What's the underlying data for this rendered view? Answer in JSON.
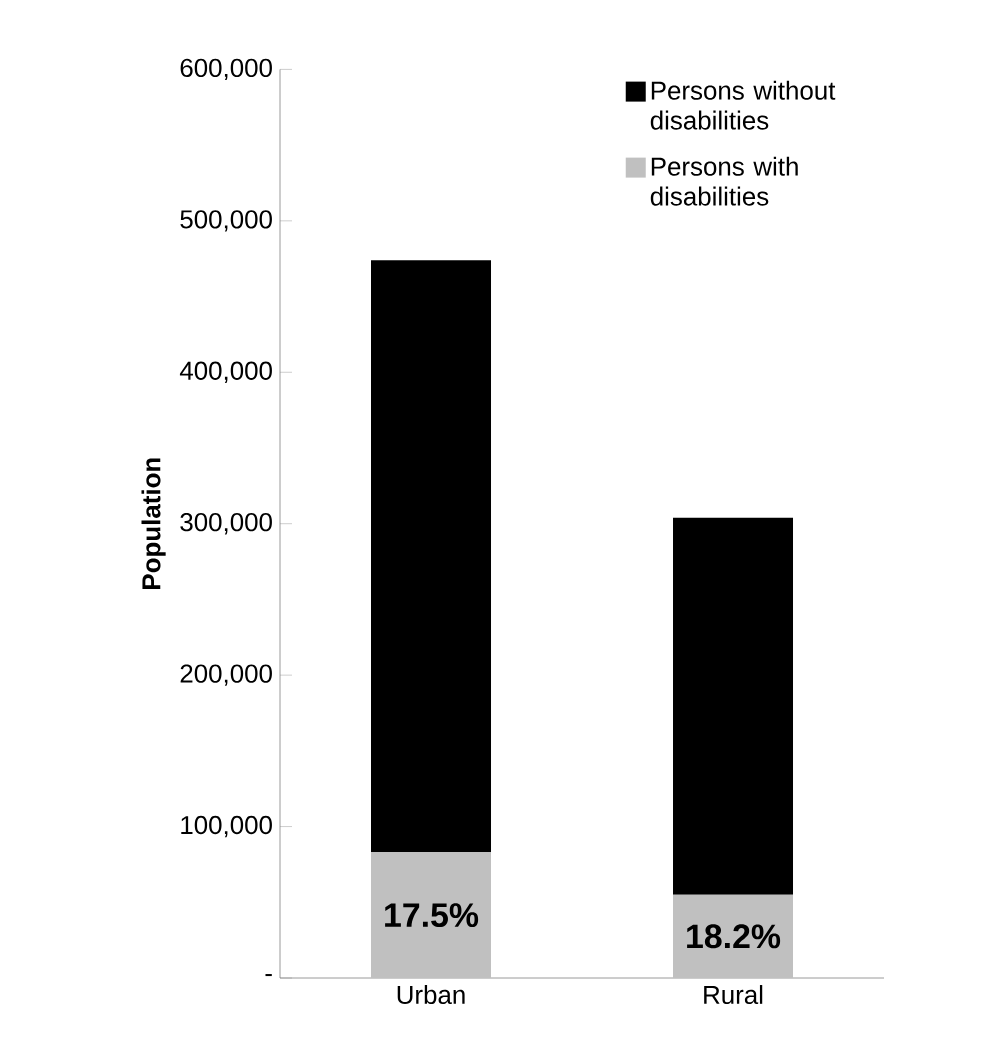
{
  "chart_data": {
    "type": "bar",
    "stacked": true,
    "ylabel": "Population",
    "categories": [
      "Urban",
      "Rural"
    ],
    "series": [
      {
        "name": "Persons with disabilities",
        "color": "#c0c0c0",
        "values": [
          83000,
          55000
        ]
      },
      {
        "name": "Persons without disabilities",
        "color": "#000000",
        "values": [
          391000,
          249000
        ]
      }
    ],
    "ylim": [
      0,
      600000
    ],
    "yticks": [
      {
        "value": 0,
        "label": "-"
      },
      {
        "value": 100000,
        "label": "100,000"
      },
      {
        "value": 200000,
        "label": "200,000"
      },
      {
        "value": 300000,
        "label": "300,000"
      },
      {
        "value": 400000,
        "label": "400,000"
      },
      {
        "value": 500000,
        "label": "500,000"
      },
      {
        "value": 600000,
        "label": "600,000"
      }
    ],
    "grid": false,
    "legend": "top right",
    "annotations": [
      "17.5%",
      "18.2%"
    ]
  }
}
